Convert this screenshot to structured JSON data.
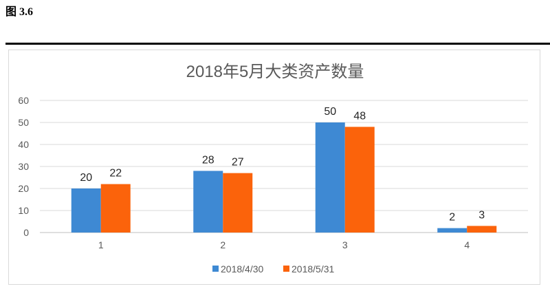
{
  "figure_label": "图 3.6",
  "chart_data": {
    "type": "bar",
    "title": "2018年5月大类资产数量",
    "categories": [
      "1",
      "2",
      "3",
      "4"
    ],
    "series": [
      {
        "name": "2018/4/30",
        "values": [
          20,
          28,
          50,
          2
        ],
        "color": "#3e89d3"
      },
      {
        "name": "2018/5/31",
        "values": [
          22,
          27,
          48,
          3
        ],
        "color": "#fb630b"
      }
    ],
    "yticks": [
      0,
      10,
      20,
      30,
      40,
      50,
      60
    ],
    "ylim": [
      0,
      60
    ],
    "xlabel": "",
    "ylabel": "",
    "grid": true,
    "legend": "bottom"
  }
}
